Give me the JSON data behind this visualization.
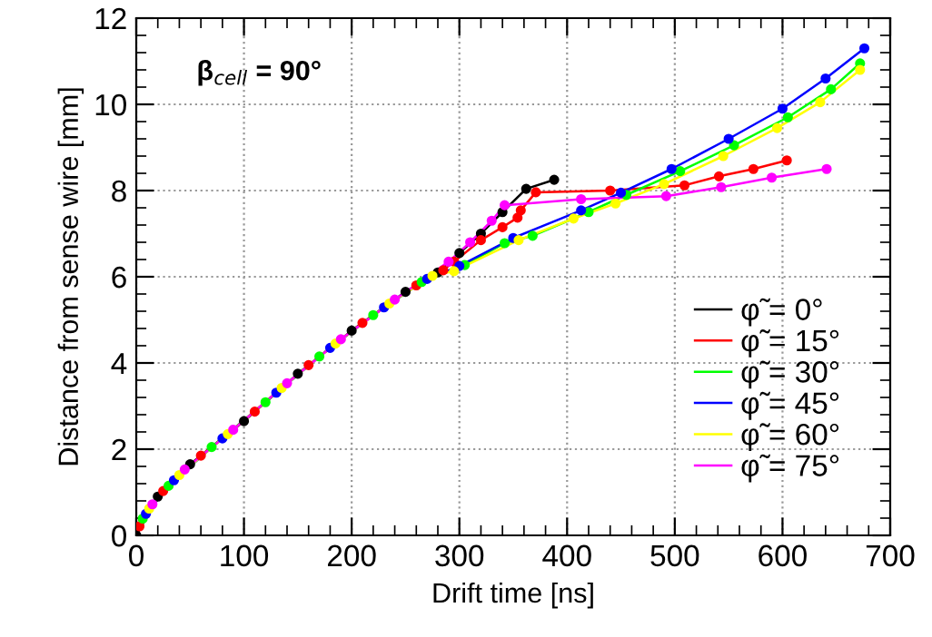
{
  "chart_data": {
    "type": "line",
    "xlabel": "Drift time [ns]",
    "ylabel": "Distance from sense wire [mm]",
    "annotations": [
      "β$_{cell}$ = 90°"
    ],
    "xlim": [
      0,
      700
    ],
    "xticks": [
      0,
      100,
      200,
      300,
      400,
      500,
      600,
      700
    ],
    "ylim": [
      0,
      12
    ],
    "yticks": [
      0,
      2,
      4,
      6,
      8,
      10,
      12
    ],
    "grid": true,
    "legend": "right",
    "marker": "circle",
    "series": [
      {
        "name": "φ̃ = 0°",
        "color": "#000000",
        "x": [
          0,
          20,
          50,
          100,
          150,
          200,
          250,
          280,
          300,
          320,
          340,
          362,
          388
        ],
        "values": [
          0,
          0.9,
          1.65,
          2.65,
          3.75,
          4.75,
          5.65,
          6.1,
          6.55,
          7.0,
          7.5,
          8.04,
          8.25
        ]
      },
      {
        "name": "φ̃ = 15°",
        "color": "#ff0000",
        "x": [
          3,
          25,
          60,
          110,
          160,
          210,
          260,
          285,
          295,
          320,
          340,
          354,
          357,
          371,
          440,
          509,
          541,
          573,
          604
        ],
        "values": [
          0.21,
          1.03,
          1.85,
          2.87,
          3.95,
          4.93,
          5.8,
          6.15,
          6.35,
          6.85,
          7.15,
          7.37,
          7.54,
          7.96,
          8.0,
          8.12,
          8.33,
          8.5,
          8.7
        ]
      },
      {
        "name": "φ̃ = 30°",
        "color": "#00ff00",
        "x": [
          6,
          30,
          70,
          120,
          170,
          220,
          265,
          305,
          342,
          368,
          420,
          455,
          505,
          555,
          605,
          645,
          672
        ],
        "values": [
          0.39,
          1.15,
          2.05,
          3.09,
          4.15,
          5.11,
          5.88,
          6.27,
          6.78,
          6.95,
          7.5,
          7.9,
          8.45,
          9.05,
          9.7,
          10.35,
          10.95
        ]
      },
      {
        "name": "φ̃ = 45°",
        "color": "#0000ff",
        "x": [
          9,
          35,
          80,
          130,
          180,
          230,
          270,
          300,
          350,
          413,
          450,
          497,
          550,
          600,
          640,
          676
        ],
        "values": [
          0.5,
          1.28,
          2.25,
          3.31,
          4.35,
          5.29,
          5.95,
          6.25,
          6.9,
          7.54,
          7.95,
          8.5,
          9.2,
          9.9,
          10.6,
          11.3
        ]
      },
      {
        "name": "φ̃ = 60°",
        "color": "#ffff00",
        "x": [
          12,
          40,
          85,
          135,
          185,
          235,
          275,
          295,
          355,
          406,
          445,
          490,
          545,
          595,
          635,
          672
        ],
        "values": [
          0.62,
          1.4,
          2.35,
          3.42,
          4.45,
          5.38,
          6.02,
          6.13,
          6.85,
          7.35,
          7.7,
          8.15,
          8.8,
          9.45,
          10.05,
          10.8
        ]
      },
      {
        "name": "φ̃ = 75°",
        "color": "#ff00ff",
        "x": [
          15,
          45,
          90,
          140,
          190,
          240,
          290,
          310,
          330,
          342,
          413,
          492,
          543,
          590,
          641
        ],
        "values": [
          0.72,
          1.53,
          2.45,
          3.53,
          4.55,
          5.47,
          6.35,
          6.8,
          7.3,
          7.66,
          7.8,
          7.87,
          8.08,
          8.3,
          8.5
        ]
      }
    ]
  }
}
